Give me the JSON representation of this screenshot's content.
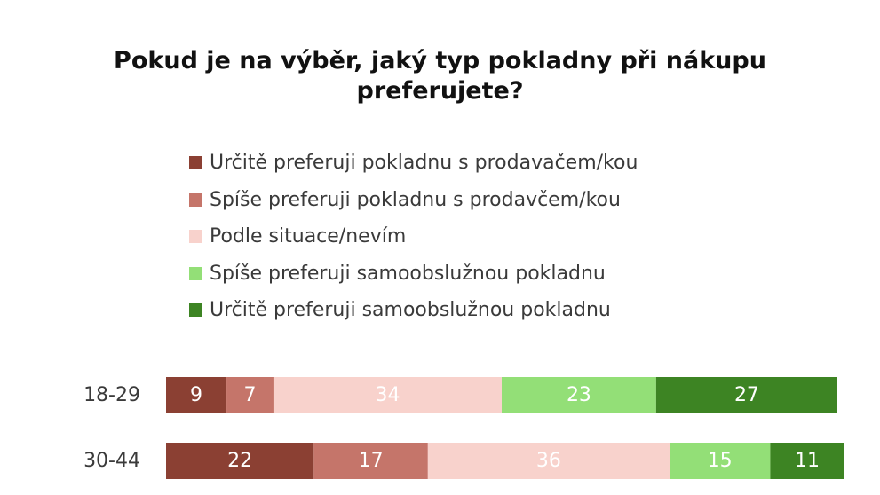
{
  "chart_data": {
    "type": "bar",
    "orientation": "horizontal",
    "stacked": true,
    "normalized_percent": true,
    "title": "Pokud je na výběr, jaký typ pokladny při nákupu preferujete?",
    "title_lines": [
      "Pokud je na výběr, jaký typ pokladny při nákupu",
      "preferujete?"
    ],
    "categories": [
      "18-29",
      "30-44"
    ],
    "series": [
      {
        "name": "Určitě preferuji pokladnu s prodavačem/kou",
        "color": "#8B4033",
        "label_color": "#ffffff",
        "values": [
          9,
          22
        ]
      },
      {
        "name": "Spíše preferuji pokladnu s prodavčem/kou",
        "color": "#C5756A",
        "label_color": "#ffffff",
        "values": [
          7,
          17
        ]
      },
      {
        "name": "Podle situace/nevím",
        "color": "#F8D2CC",
        "label_color": "#ffffff",
        "values": [
          34,
          36
        ]
      },
      {
        "name": "Spíše preferuji samoobslužnou pokladnu",
        "color": "#93DF77",
        "label_color": "#ffffff",
        "values": [
          23,
          15
        ]
      },
      {
        "name": "Určitě preferuji samoobslužnou pokladnu",
        "color": "#3D8423",
        "label_color": "#ffffff",
        "values": [
          27,
          11
        ]
      }
    ],
    "legend_position": "top",
    "grid": false,
    "xlim": [
      0,
      100
    ]
  }
}
